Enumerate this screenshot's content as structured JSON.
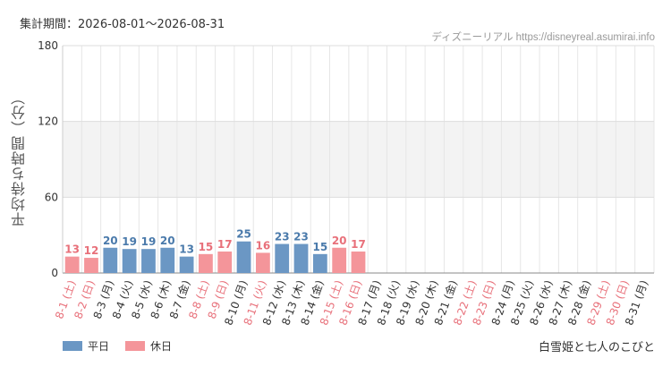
{
  "header": {
    "period": "集計期間：2026-08-01～2026-08-31",
    "source": "ディズニーリアル https://disneyreal.asumirai.info"
  },
  "footer": {
    "attraction": "白雪姫と七人のこびと"
  },
  "colors": {
    "weekday": "#6b97c4",
    "holiday": "#f4959a",
    "weekday_text": "#4a7aab",
    "holiday_text": "#e8707a"
  },
  "chart_data": {
    "type": "bar",
    "ylabel": "平均待ち時間（分）",
    "ylim": [
      0,
      180
    ],
    "yticks": [
      0,
      60,
      120,
      180
    ],
    "grid": true,
    "legend_position": "bottom-left",
    "series": [
      {
        "name": "平日",
        "key": "weekday"
      },
      {
        "name": "休日",
        "key": "holiday"
      }
    ],
    "categories": [
      {
        "label": "8-1 (土)",
        "type": "holiday",
        "value": 13
      },
      {
        "label": "8-2 (日)",
        "type": "holiday",
        "value": 12
      },
      {
        "label": "8-3 (月)",
        "type": "weekday",
        "value": 20
      },
      {
        "label": "8-4 (火)",
        "type": "weekday",
        "value": 19
      },
      {
        "label": "8-5 (水)",
        "type": "weekday",
        "value": 19
      },
      {
        "label": "8-6 (木)",
        "type": "weekday",
        "value": 20
      },
      {
        "label": "8-7 (金)",
        "type": "weekday",
        "value": 13
      },
      {
        "label": "8-8 (土)",
        "type": "holiday",
        "value": 15
      },
      {
        "label": "8-9 (日)",
        "type": "holiday",
        "value": 17
      },
      {
        "label": "8-10 (月)",
        "type": "weekday",
        "value": 25
      },
      {
        "label": "8-11 (火)",
        "type": "holiday",
        "value": 16
      },
      {
        "label": "8-12 (水)",
        "type": "weekday",
        "value": 23
      },
      {
        "label": "8-13 (木)",
        "type": "weekday",
        "value": 23
      },
      {
        "label": "8-14 (金)",
        "type": "weekday",
        "value": 15
      },
      {
        "label": "8-15 (土)",
        "type": "holiday",
        "value": 20
      },
      {
        "label": "8-16 (日)",
        "type": "holiday",
        "value": 17
      },
      {
        "label": "8-17 (月)",
        "type": "weekday",
        "value": null
      },
      {
        "label": "8-18 (火)",
        "type": "weekday",
        "value": null
      },
      {
        "label": "8-19 (水)",
        "type": "weekday",
        "value": null
      },
      {
        "label": "8-20 (木)",
        "type": "weekday",
        "value": null
      },
      {
        "label": "8-21 (金)",
        "type": "weekday",
        "value": null
      },
      {
        "label": "8-22 (土)",
        "type": "holiday",
        "value": null
      },
      {
        "label": "8-23 (日)",
        "type": "holiday",
        "value": null
      },
      {
        "label": "8-24 (月)",
        "type": "weekday",
        "value": null
      },
      {
        "label": "8-25 (火)",
        "type": "weekday",
        "value": null
      },
      {
        "label": "8-26 (水)",
        "type": "weekday",
        "value": null
      },
      {
        "label": "8-27 (木)",
        "type": "weekday",
        "value": null
      },
      {
        "label": "8-28 (金)",
        "type": "weekday",
        "value": null
      },
      {
        "label": "8-29 (土)",
        "type": "holiday",
        "value": null
      },
      {
        "label": "8-30 (日)",
        "type": "holiday",
        "value": null
      },
      {
        "label": "8-31 (月)",
        "type": "weekday",
        "value": null
      }
    ]
  }
}
